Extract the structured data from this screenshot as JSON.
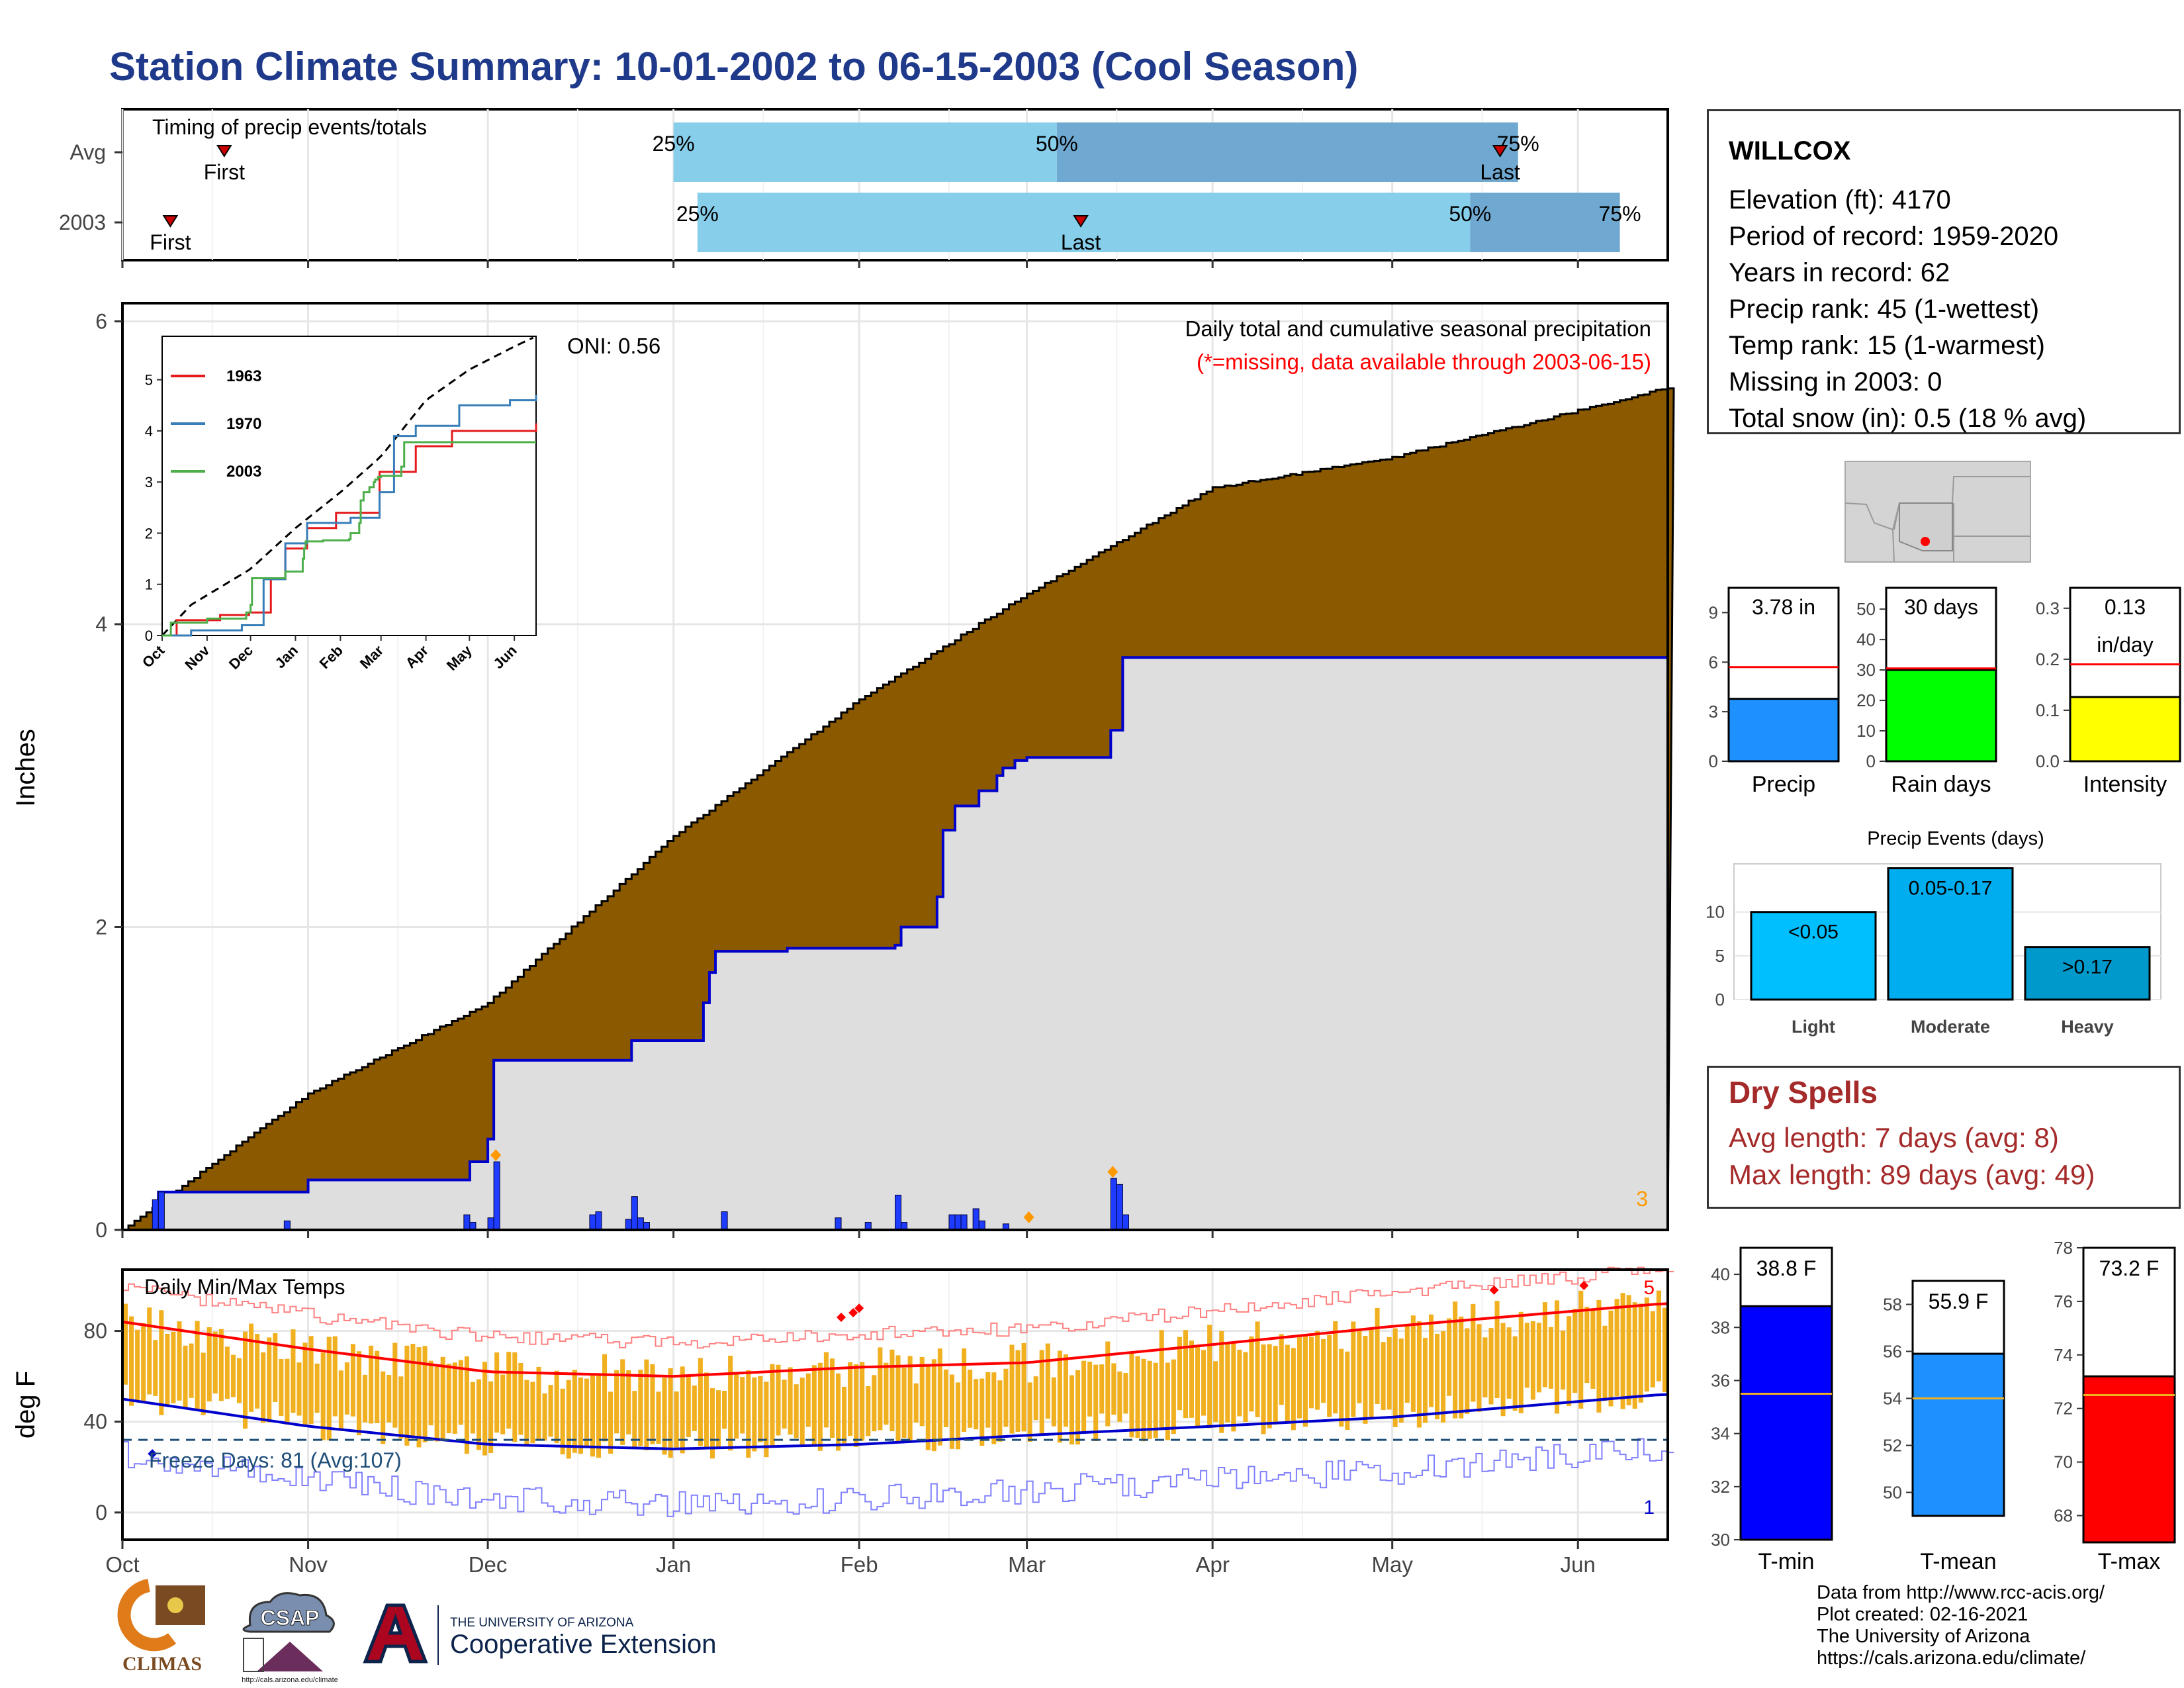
{
  "title": "Station Climate Summary: 10-01-2002 to 06-15-2003 (Cool Season)",
  "timing": {
    "label": "Timing of precip events/totals",
    "rows": [
      {
        "name": "Avg",
        "first_doy": 17,
        "q25": 92,
        "q50": 156,
        "q75": 233,
        "last_doy": 230
      },
      {
        "name": "2003",
        "first_doy": 8,
        "q25": 96,
        "q50": 225,
        "q75": 250,
        "last_doy": 160
      }
    ],
    "first_label": "First",
    "last_label": "Last",
    "pct_labels": [
      "25%",
      "50%",
      "75%"
    ],
    "colors": {
      "light": "#87ceeb",
      "dark": "#6fa8d0",
      "marker": "#cc0000"
    }
  },
  "precip_panel": {
    "ylabel": "Inches",
    "yticks": [
      "0",
      "2",
      "4",
      "6"
    ],
    "header": "Daily total and cumulative seasonal precipitation",
    "missing_note": "(*=missing, data available through 2003-06-15)",
    "oni": "ONI: 0.56",
    "corner_value": "3",
    "colors": {
      "avg_fill": "#8b5a00",
      "year_fill": "#dedede",
      "year_line": "#0000cc",
      "daily_bar": "#1e3cff",
      "extreme": "#ff9900"
    }
  },
  "inset": {
    "yticks": [
      "0",
      "1",
      "2",
      "3",
      "4",
      "5"
    ],
    "xticks": [
      "Oct",
      "Nov",
      "Dec",
      "Jan",
      "Feb",
      "Mar",
      "Apr",
      "May",
      "Jun"
    ],
    "legend": [
      {
        "name": "1963",
        "color": "#e41a1c"
      },
      {
        "name": "1970",
        "color": "#377eb8"
      },
      {
        "name": "2003",
        "color": "#4daf4a"
      }
    ]
  },
  "temp_panel": {
    "ylabel": "deg F",
    "yticks": [
      "0",
      "40",
      "80"
    ],
    "title": "Daily Min/Max Temps",
    "freeze": "Freeze Days: 81 (Avg:107)",
    "max_count": "5",
    "min_count": "1",
    "colors": {
      "bar": "#f0b020",
      "max": "#ff0000",
      "min": "#0000cc",
      "freeze": "#1f4e79"
    }
  },
  "months": [
    "Oct",
    "Nov",
    "Dec",
    "Jan",
    "Feb",
    "Mar",
    "Apr",
    "May",
    "Jun"
  ],
  "station": {
    "name": "WILLCOX",
    "lines": [
      "Elevation (ft): 4170",
      "Period of record: 1959-2020",
      "Years in record: 62",
      "Precip rank: 45 (1-wettest)",
      "Temp rank: 15 (1-warmest)",
      "Missing in 2003: 0",
      "Total snow (in): 0.5 (18 % avg)"
    ]
  },
  "mini_bars": [
    {
      "name": "Precip",
      "value_label": "3.78 in",
      "value": 3.78,
      "avg": 5.7,
      "ymax": 10.5,
      "yticks": [
        "0",
        "3",
        "6",
        "9"
      ],
      "tick_values": [
        0,
        3,
        6,
        9
      ],
      "color": "#1e90ff"
    },
    {
      "name": "Rain days",
      "value_label": "30 days",
      "value": 30,
      "avg": 30.5,
      "ymax": 57,
      "yticks": [
        "0",
        "10",
        "20",
        "30",
        "40",
        "50"
      ],
      "tick_values": [
        0,
        10,
        20,
        30,
        40,
        50
      ],
      "color": "#00ff00"
    },
    {
      "name": "Intensity",
      "value_label": "0.13",
      "value_label2": "in/day",
      "value": 0.126,
      "avg": 0.19,
      "ymax": 0.34,
      "yticks": [
        "0.0",
        "0.1",
        "0.2",
        "0.3"
      ],
      "tick_values": [
        0,
        0.1,
        0.2,
        0.3
      ],
      "color": "#ffff00"
    }
  ],
  "events": {
    "title": "Precip Events (days)",
    "yticks": [
      "0",
      "5",
      "10"
    ],
    "tick_values": [
      0,
      5,
      10
    ],
    "categories": [
      "Light",
      "Moderate",
      "Heavy"
    ],
    "bars": [
      {
        "label": "<0.05",
        "value": 10,
        "color": "#00bfff"
      },
      {
        "label": "0.05-0.17",
        "value": 15,
        "color": "#00aeef"
      },
      {
        "label": ">0.17",
        "value": 6,
        "color": "#0099cc"
      }
    ]
  },
  "dry_spells": {
    "title": "Dry Spells",
    "avg": "Avg length: 7 days (avg: 8)",
    "max": "Max length: 89 days (avg: 49)"
  },
  "temp_bars": [
    {
      "name": "T-min",
      "value_label": "38.8 F",
      "value": 38.8,
      "avg": 35.5,
      "ymin": 30,
      "ymax": 41,
      "yticks": [
        "30",
        "32",
        "34",
        "36",
        "38",
        "40"
      ],
      "tick_values": [
        30,
        32,
        34,
        36,
        38,
        40
      ],
      "color": "#0000ff"
    },
    {
      "name": "T-mean",
      "value_label": "55.9 F",
      "value": 55.9,
      "avg": 54.0,
      "ymin": 49,
      "ymax": 59,
      "yticks": [
        "50",
        "52",
        "54",
        "56",
        "58"
      ],
      "tick_values": [
        50,
        52,
        54,
        56,
        58
      ],
      "color": "#1e90ff"
    },
    {
      "name": "T-max",
      "value_label": "73.2 F",
      "value": 73.2,
      "avg": 72.5,
      "ymin": 67,
      "ymax": 78,
      "yticks": [
        "68",
        "70",
        "72",
        "74",
        "76",
        "78"
      ],
      "tick_values": [
        68,
        70,
        72,
        74,
        76,
        78
      ],
      "color": "#ff0000"
    }
  ],
  "credits": [
    "Data from http://www.rcc-acis.org/",
    "Plot created: 02-16-2021",
    "The University of Arizona",
    "https://cals.arizona.edu/climate/"
  ],
  "logos": {
    "climas": "CLIMAS",
    "csap": "CSAP",
    "csap_url": "http://cals.arizona.edu/climate",
    "ua_top": "THE UNIVERSITY OF ARIZONA",
    "ua_bottom": "Cooperative Extension"
  },
  "chart_data": {
    "type": "area",
    "title": "Daily total and cumulative seasonal precipitation",
    "xlabel": "",
    "ylabel": "Inches",
    "ylim": [
      0,
      6
    ],
    "x": [
      "Oct 1",
      "Oct 7",
      "Nov 1",
      "Nov 28",
      "Dec 1",
      "Dec 2",
      "Dec 25",
      "Jan 6",
      "Jan 7",
      "Jan 8",
      "Jan 20",
      "Feb 7",
      "Feb 8",
      "Feb 14",
      "Feb 15",
      "Feb 17",
      "Feb 21",
      "Feb 24",
      "Feb 25",
      "Feb 27",
      "Mar 1",
      "Mar 15",
      "Mar 17",
      "Jun 15"
    ],
    "series": [
      {
        "name": "2003",
        "values": [
          0,
          0.25,
          0.33,
          0.45,
          0.6,
          1.12,
          1.25,
          1.5,
          1.7,
          1.84,
          1.86,
          1.88,
          2.0,
          2.2,
          2.64,
          2.8,
          2.9,
          3.0,
          3.05,
          3.1,
          3.12,
          3.3,
          3.78,
          3.78
        ]
      }
    ],
    "daily_precip": {
      "dates": [
        "Oct 6",
        "Oct 7",
        "Oct 28",
        "Nov 27",
        "Nov 28",
        "Dec 1",
        "Dec 2",
        "Dec 18",
        "Dec 19",
        "Dec 24",
        "Dec 25",
        "Dec 26",
        "Dec 27",
        "Jan 9",
        "Jan 28",
        "Feb 2",
        "Feb 7",
        "Feb 8",
        "Feb 16",
        "Feb 17",
        "Feb 18",
        "Feb 20",
        "Feb 21",
        "Feb 25",
        "Mar 15",
        "Mar 16",
        "Mar 17"
      ],
      "values": [
        0.2,
        0.25,
        0.06,
        0.1,
        0.05,
        0.08,
        0.45,
        0.1,
        0.12,
        0.07,
        0.22,
        0.08,
        0.05,
        0.12,
        0.08,
        0.05,
        0.23,
        0.05,
        0.1,
        0.1,
        0.1,
        0.14,
        0.06,
        0.04,
        0.34,
        0.3,
        0.1
      ]
    },
    "avg_cumulative": {
      "x": [
        "Oct 1",
        "Nov 1",
        "Dec 1",
        "Jan 1",
        "Feb 1",
        "Mar 1",
        "Apr 1",
        "May 1",
        "Jun 15"
      ],
      "values": [
        0,
        0.9,
        1.5,
        2.6,
        3.5,
        4.2,
        4.9,
        5.1,
        5.55
      ]
    },
    "temps": {
      "x": [
        "Oct 1",
        "Nov 1",
        "Dec 1",
        "Jan 1",
        "Feb 1",
        "Mar 1",
        "Apr 1",
        "May 1",
        "Jun 15"
      ],
      "avg_max": [
        84,
        72,
        62,
        60,
        64,
        66,
        74,
        82,
        92
      ],
      "avg_min": [
        50,
        38,
        30,
        28,
        30,
        34,
        38,
        42,
        52
      ],
      "freeze_threshold": 32
    }
  }
}
